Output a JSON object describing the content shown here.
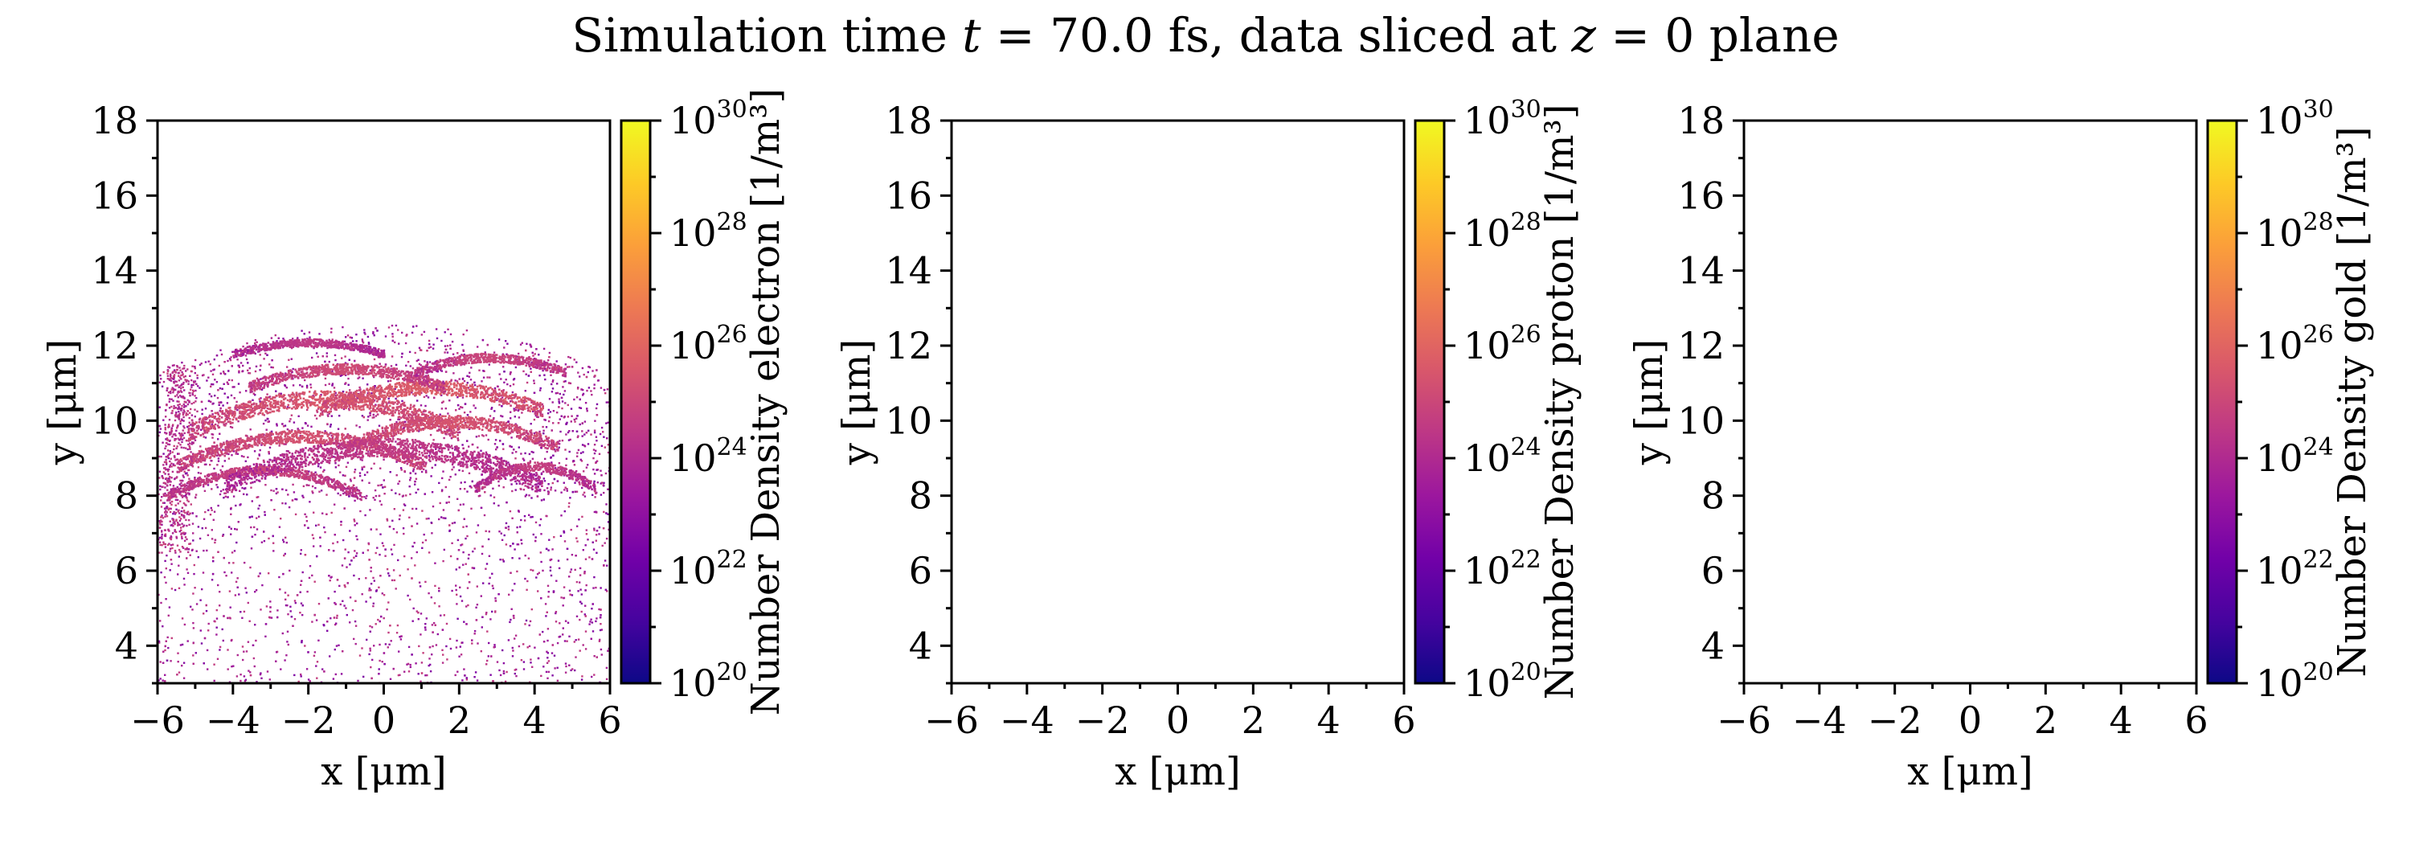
{
  "title": "Simulation time t = 70.0 fs, data sliced at z = 0 plane",
  "title_parts": {
    "prefix": "Simulation time ",
    "t_var": "t",
    "eq1": " = 70.0 fs, data sliced at ",
    "z_var": "z",
    "eq2": " = 0 plane"
  },
  "colormap": {
    "name": "plasma",
    "stops": [
      "#0d0887",
      "#46039f",
      "#7201a8",
      "#9c179e",
      "#bd3786",
      "#d8576b",
      "#ed7953",
      "#fb9f3a",
      "#fdca26",
      "#f0f921"
    ]
  },
  "chart_data": [
    {
      "type": "heatmap",
      "species": "electron",
      "xlabel": "x [μm]",
      "ylabel": "y [μm]",
      "xlim": [
        -6,
        6
      ],
      "ylim": [
        3,
        18
      ],
      "xticks": [
        -6,
        -4,
        -2,
        0,
        2,
        4,
        6
      ],
      "yticks": [
        4,
        6,
        8,
        10,
        12,
        14,
        16,
        18
      ],
      "colorbar": {
        "label": "Number Density electron [1/m³]",
        "scale": "log",
        "range": [
          1e+20,
          1e+30
        ],
        "ticks": [
          20,
          22,
          24,
          26,
          28,
          30
        ]
      },
      "has_data": true,
      "description": "sparse electron density (~1e22–1e25) in region y 3–12.5 with curved dense bands (~1e25–1e26) near y 8–12"
    },
    {
      "type": "heatmap",
      "species": "proton",
      "xlabel": "x [μm]",
      "ylabel": "y [μm]",
      "xlim": [
        -6,
        6
      ],
      "ylim": [
        3,
        18
      ],
      "xticks": [
        -6,
        -4,
        -2,
        0,
        2,
        4,
        6
      ],
      "yticks": [
        4,
        6,
        8,
        10,
        12,
        14,
        16,
        18
      ],
      "colorbar": {
        "label": "Number Density proton [1/m³]",
        "scale": "log",
        "range": [
          1e+20,
          1e+30
        ],
        "ticks": [
          20,
          22,
          24,
          26,
          28,
          30
        ]
      },
      "has_data": false
    },
    {
      "type": "heatmap",
      "species": "gold",
      "xlabel": "x [μm]",
      "ylabel": "y [μm]",
      "xlim": [
        -6,
        6
      ],
      "ylim": [
        3,
        18
      ],
      "xticks": [
        -6,
        -4,
        -2,
        0,
        2,
        4,
        6
      ],
      "yticks": [
        4,
        6,
        8,
        10,
        12,
        14,
        16,
        18
      ],
      "colorbar": {
        "label": "Number Density gold [1/m³]",
        "scale": "log",
        "range": [
          1e+20,
          1e+30
        ],
        "ticks": [
          20,
          22,
          24,
          26,
          28,
          30
        ]
      },
      "has_data": false
    }
  ],
  "electron_bands": [
    {
      "xc": -1.6,
      "yc": 10.6,
      "hw": 3.6,
      "sag": 0.9,
      "thick": 0.22,
      "logn": 25.6
    },
    {
      "xc": 1.2,
      "yc": 10.9,
      "hw": 3.0,
      "sag": 0.6,
      "thick": 0.18,
      "logn": 25.8
    },
    {
      "xc": -2.2,
      "yc": 9.6,
      "hw": 3.3,
      "sag": 0.8,
      "thick": 0.16,
      "logn": 25.4
    },
    {
      "xc": 1.8,
      "yc": 10.0,
      "hw": 2.8,
      "sag": 0.7,
      "thick": 0.16,
      "logn": 25.5
    },
    {
      "xc": -1.0,
      "yc": 11.4,
      "hw": 2.6,
      "sag": 0.5,
      "thick": 0.14,
      "logn": 25.2
    },
    {
      "xc": 2.8,
      "yc": 11.7,
      "hw": 2.0,
      "sag": 0.4,
      "thick": 0.12,
      "logn": 25.0
    },
    {
      "xc": -3.2,
      "yc": 8.7,
      "hw": 2.6,
      "sag": 0.7,
      "thick": 0.12,
      "logn": 25.0
    },
    {
      "xc": 0.0,
      "yc": 9.3,
      "hw": 4.2,
      "sag": 1.0,
      "thick": 0.25,
      "logn": 24.6
    },
    {
      "xc": -2.0,
      "yc": 12.1,
      "hw": 2.0,
      "sag": 0.3,
      "thick": 0.1,
      "logn": 24.6
    },
    {
      "xc": 4.0,
      "yc": 8.8,
      "hw": 1.6,
      "sag": 0.6,
      "thick": 0.12,
      "logn": 24.8
    }
  ]
}
